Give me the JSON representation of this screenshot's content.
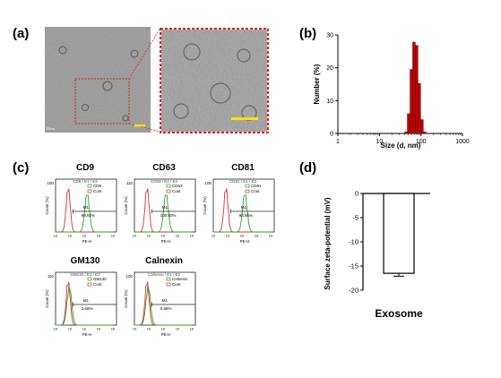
{
  "panel_labels": {
    "a": "(a)",
    "b": "(b)",
    "c": "(c)",
    "d": "(d)"
  },
  "panel_a": {
    "scale_bar_text": "50nm"
  },
  "chart_data": [
    {
      "type": "bar",
      "panel": "b",
      "xlabel": "Size (d, nm)",
      "ylabel": "Number (%)",
      "x_scale": "log",
      "xlim": [
        1,
        1000
      ],
      "ylim": [
        0,
        30
      ],
      "x_ticks": [
        "1",
        "10",
        "100",
        "1000"
      ],
      "y_ticks": [
        "0",
        "10",
        "20",
        "30"
      ],
      "bars": [
        {
          "x": 43.8,
          "value": 0.5
        },
        {
          "x": 50.7,
          "value": 6.0
        },
        {
          "x": 58.8,
          "value": 19.5
        },
        {
          "x": 68.1,
          "value": 27.8
        },
        {
          "x": 78.8,
          "value": 26.8
        },
        {
          "x": 91.3,
          "value": 15.2
        },
        {
          "x": 105.7,
          "value": 4.2
        },
        {
          "x": 122.4,
          "value": 0.5
        }
      ],
      "bar_color": "#c00000"
    },
    {
      "type": "bar",
      "panel": "d",
      "categories": [
        "Exosome"
      ],
      "values": [
        -16.5
      ],
      "error": [
        0.6
      ],
      "ylabel": "Surface zeta-potential (mV)",
      "ylim": [
        -20,
        0
      ],
      "y_ticks": [
        "0",
        "-5",
        "-10",
        "-15",
        "-20"
      ]
    }
  ],
  "flow_panels": [
    {
      "title": "CD9",
      "header": "CD9 / E1 / E2",
      "legend": [
        "CD9",
        "Cont"
      ],
      "gate_label": "M1",
      "percent": "98.92%",
      "ytop": "100",
      "xlabel": "PE-H",
      "ylabel": "Count (%)",
      "peak": "shift"
    },
    {
      "title": "CD63",
      "header": "CD63 / E1 / E2",
      "legend": [
        "CD63",
        "Cont"
      ],
      "gate_label": "M1",
      "percent": "100.00%",
      "ytop": "110",
      "xlabel": "PE-H",
      "ylabel": "Count (%)",
      "peak": "shift"
    },
    {
      "title": "CD81",
      "header": "CD81 / E1 / E2",
      "legend": [
        "CD81",
        "Cont"
      ],
      "gate_label": "M1",
      "percent": "98.86%",
      "ytop": "100",
      "xlabel": "PE-H",
      "ylabel": "Count (%)",
      "peak": "shift"
    },
    {
      "title": "GM130",
      "header": "GM130 / E1 / E2",
      "legend": [
        "GM130",
        "Cont"
      ],
      "gate_label": "M1",
      "percent": "3.69%",
      "ytop": "110",
      "xlabel": "PE-H",
      "ylabel": "Count (%)",
      "peak": "overlap"
    },
    {
      "title": "Calnexin",
      "header": "Calnexin / E1 / E2",
      "legend": [
        "Calnexin",
        "Cont"
      ],
      "gate_label": "M1",
      "percent": "0.68%",
      "ytop": "100",
      "xlabel": "PE-H",
      "ylabel": "Count (%)",
      "peak": "overlap"
    }
  ],
  "colors": {
    "marker": "#2ca02c",
    "control": "#e03030",
    "em_border": "#e02020",
    "scale_bar": "#ffe000"
  }
}
